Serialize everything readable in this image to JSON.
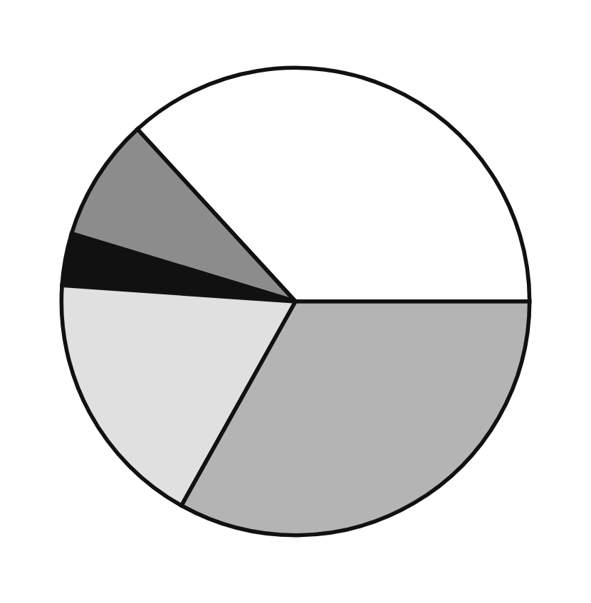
{
  "chart_data": {
    "type": "pie",
    "categories": [
      null,
      null,
      null,
      null,
      null
    ],
    "values": [
      36.8,
      8.5,
      3.6,
      18,
      33.1
    ],
    "colors": [
      "#ffffff",
      "#8c8c8c",
      "#111111",
      "#e0e0e0",
      "#b4b4b4"
    ]
  }
}
